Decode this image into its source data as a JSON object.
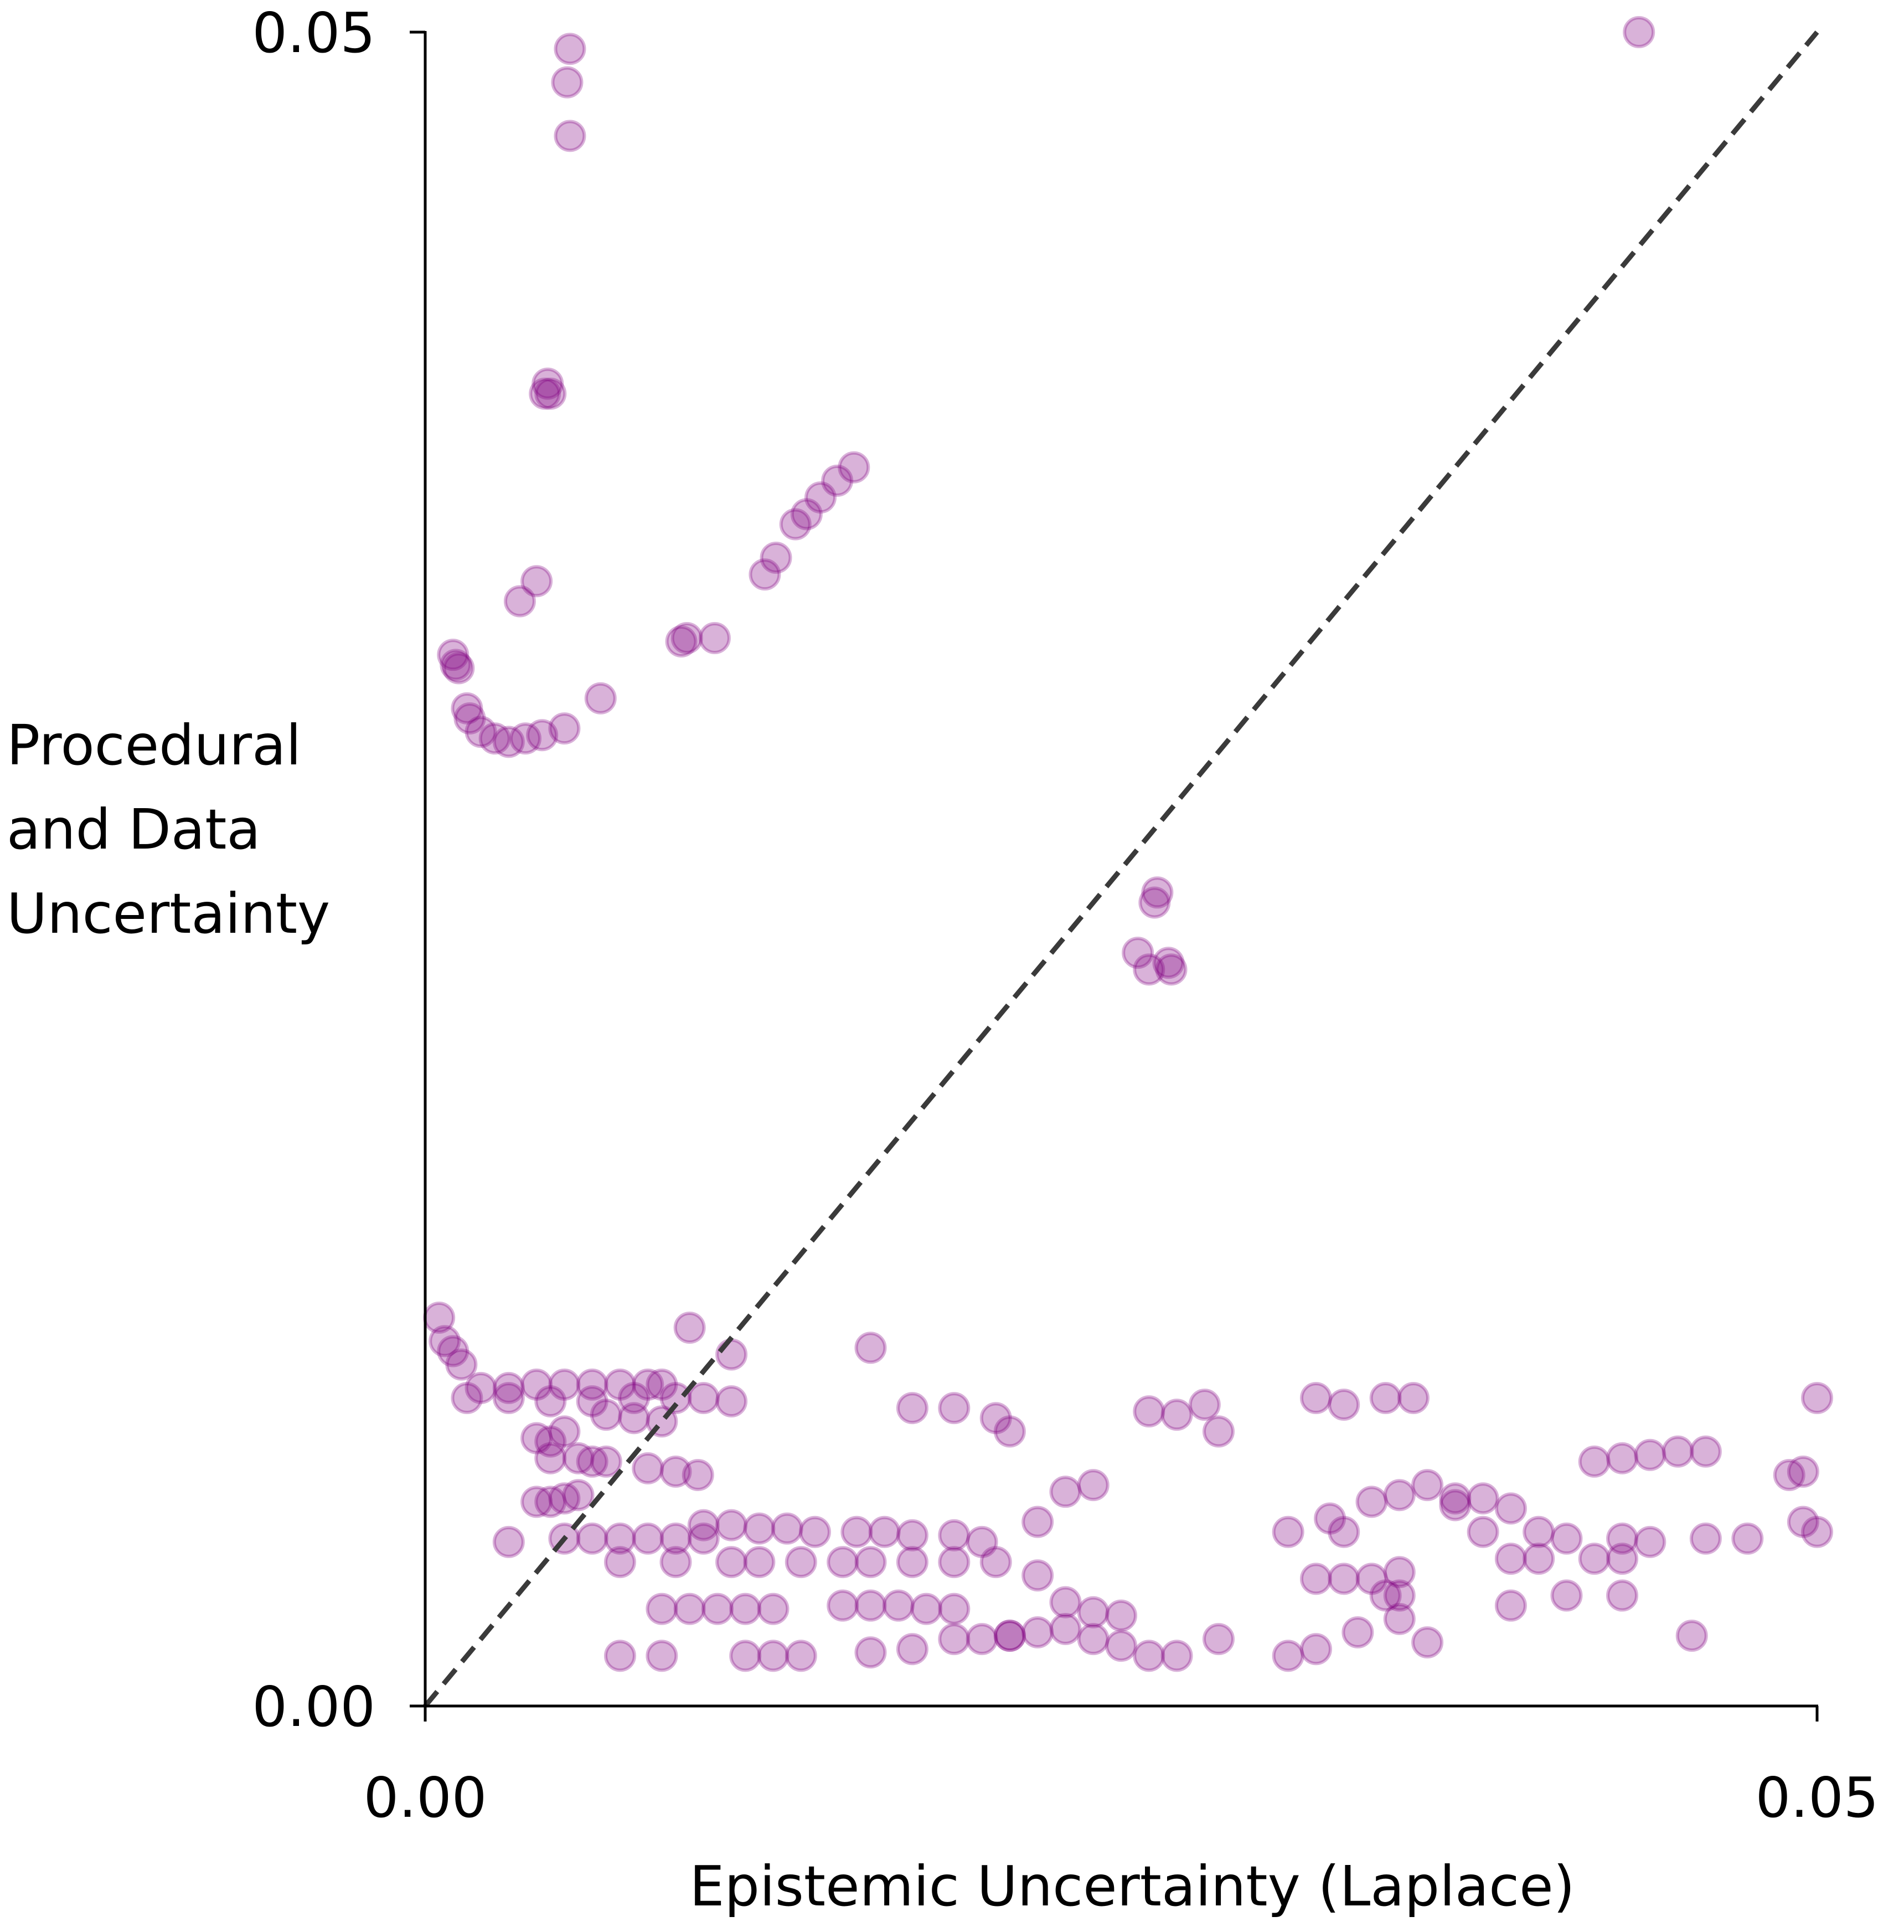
{
  "chart_data": {
    "type": "scatter",
    "title": "",
    "xlabel": "Epistemic Uncertainty (Laplace)",
    "ylabel_lines": [
      "Procedural",
      "and Data",
      "Uncertainty"
    ],
    "xlim": [
      0.0,
      0.05
    ],
    "ylim": [
      0.0,
      0.05
    ],
    "x_ticks": [
      0.0,
      0.05
    ],
    "x_tick_labels": [
      "0.00",
      "0.05"
    ],
    "y_ticks": [
      0.0,
      0.05
    ],
    "y_tick_labels": [
      "0.00",
      "0.05"
    ],
    "reference_line": {
      "style": "dashed",
      "from": [
        0.0,
        0.0
      ],
      "to": [
        0.05,
        0.05
      ],
      "color": "#3a3a3a"
    },
    "marker_color": "#800080",
    "marker_opacity": 0.3,
    "grid": false,
    "series": [
      {
        "name": "samples",
        "points": [
          [
            0.0052,
            0.0495
          ],
          [
            0.0051,
            0.0485
          ],
          [
            0.0052,
            0.0469
          ],
          [
            0.0045,
            0.0392
          ],
          [
            0.0043,
            0.0392
          ],
          [
            0.0044,
            0.0395
          ],
          [
            0.0154,
            0.037
          ],
          [
            0.0148,
            0.0366
          ],
          [
            0.0142,
            0.0361
          ],
          [
            0.0137,
            0.0356
          ],
          [
            0.0133,
            0.0353
          ],
          [
            0.0126,
            0.0343
          ],
          [
            0.0122,
            0.0338
          ],
          [
            0.0094,
            0.0319
          ],
          [
            0.0104,
            0.0319
          ],
          [
            0.0092,
            0.0318
          ],
          [
            0.004,
            0.0336
          ],
          [
            0.0034,
            0.033
          ],
          [
            0.001,
            0.0314
          ],
          [
            0.0011,
            0.0311
          ],
          [
            0.0012,
            0.031
          ],
          [
            0.0015,
            0.0298
          ],
          [
            0.0016,
            0.0295
          ],
          [
            0.002,
            0.0291
          ],
          [
            0.0025,
            0.0289
          ],
          [
            0.003,
            0.0288
          ],
          [
            0.0036,
            0.0289
          ],
          [
            0.0042,
            0.029
          ],
          [
            0.005,
            0.0292
          ],
          [
            0.0063,
            0.0301
          ],
          [
            0.0436,
            0.05
          ],
          [
            0.0263,
            0.0243
          ],
          [
            0.0262,
            0.024
          ],
          [
            0.0256,
            0.0225
          ],
          [
            0.0267,
            0.0222
          ],
          [
            0.0268,
            0.022
          ],
          [
            0.026,
            0.022
          ],
          [
            0.0005,
            0.0116
          ],
          [
            0.0007,
            0.0109
          ],
          [
            0.001,
            0.0106
          ],
          [
            0.0013,
            0.0102
          ],
          [
            0.002,
            0.0095
          ],
          [
            0.003,
            0.0095
          ],
          [
            0.004,
            0.0096
          ],
          [
            0.005,
            0.0096
          ],
          [
            0.006,
            0.0096
          ],
          [
            0.007,
            0.0096
          ],
          [
            0.008,
            0.0096
          ],
          [
            0.0085,
            0.0096
          ],
          [
            0.0015,
            0.0092
          ],
          [
            0.003,
            0.0092
          ],
          [
            0.0045,
            0.0091
          ],
          [
            0.006,
            0.0091
          ],
          [
            0.0075,
            0.0092
          ],
          [
            0.009,
            0.0092
          ],
          [
            0.01,
            0.0092
          ],
          [
            0.011,
            0.0091
          ],
          [
            0.0065,
            0.0087
          ],
          [
            0.0075,
            0.0086
          ],
          [
            0.0085,
            0.0085
          ],
          [
            0.004,
            0.008
          ],
          [
            0.0045,
            0.0079
          ],
          [
            0.005,
            0.0082
          ],
          [
            0.0045,
            0.0074
          ],
          [
            0.0055,
            0.0074
          ],
          [
            0.006,
            0.0073
          ],
          [
            0.0065,
            0.0073
          ],
          [
            0.008,
            0.0071
          ],
          [
            0.009,
            0.007
          ],
          [
            0.0098,
            0.0069
          ],
          [
            0.004,
            0.0061
          ],
          [
            0.0045,
            0.0061
          ],
          [
            0.005,
            0.0062
          ],
          [
            0.0055,
            0.0063
          ],
          [
            0.003,
            0.0049
          ],
          [
            0.005,
            0.005
          ],
          [
            0.006,
            0.005
          ],
          [
            0.007,
            0.005
          ],
          [
            0.008,
            0.005
          ],
          [
            0.009,
            0.005
          ],
          [
            0.01,
            0.005
          ],
          [
            0.01,
            0.0054
          ],
          [
            0.011,
            0.0054
          ],
          [
            0.012,
            0.0053
          ],
          [
            0.013,
            0.0053
          ],
          [
            0.014,
            0.0052
          ],
          [
            0.0155,
            0.0052
          ],
          [
            0.0165,
            0.0052
          ],
          [
            0.0175,
            0.0051
          ],
          [
            0.019,
            0.0051
          ],
          [
            0.02,
            0.0049
          ],
          [
            0.007,
            0.0043
          ],
          [
            0.009,
            0.0043
          ],
          [
            0.011,
            0.0043
          ],
          [
            0.012,
            0.0043
          ],
          [
            0.0135,
            0.0043
          ],
          [
            0.015,
            0.0043
          ],
          [
            0.016,
            0.0043
          ],
          [
            0.0175,
            0.0043
          ],
          [
            0.0085,
            0.0029
          ],
          [
            0.0095,
            0.0029
          ],
          [
            0.0105,
            0.0029
          ],
          [
            0.0115,
            0.0029
          ],
          [
            0.0125,
            0.0029
          ],
          [
            0.015,
            0.003
          ],
          [
            0.016,
            0.003
          ],
          [
            0.017,
            0.003
          ],
          [
            0.018,
            0.0029
          ],
          [
            0.019,
            0.0029
          ],
          [
            0.0115,
            0.0015
          ],
          [
            0.0125,
            0.0015
          ],
          [
            0.0135,
            0.0015
          ],
          [
            0.007,
            0.0015
          ],
          [
            0.0085,
            0.0015
          ],
          [
            0.016,
            0.0016
          ],
          [
            0.0175,
            0.0017
          ],
          [
            0.019,
            0.002
          ],
          [
            0.02,
            0.002
          ],
          [
            0.021,
            0.0021
          ],
          [
            0.0095,
            0.0113
          ],
          [
            0.011,
            0.0105
          ],
          [
            0.016,
            0.0107
          ],
          [
            0.0175,
            0.0089
          ],
          [
            0.019,
            0.0089
          ],
          [
            0.0205,
            0.0086
          ],
          [
            0.021,
            0.0082
          ],
          [
            0.019,
            0.0043
          ],
          [
            0.0205,
            0.0043
          ],
          [
            0.022,
            0.0039
          ],
          [
            0.023,
            0.0031
          ],
          [
            0.024,
            0.0028
          ],
          [
            0.025,
            0.0027
          ],
          [
            0.021,
            0.0021
          ],
          [
            0.022,
            0.0022
          ],
          [
            0.023,
            0.0023
          ],
          [
            0.024,
            0.002
          ],
          [
            0.025,
            0.0018
          ],
          [
            0.026,
            0.0015
          ],
          [
            0.027,
            0.0015
          ],
          [
            0.0285,
            0.002
          ],
          [
            0.023,
            0.0064
          ],
          [
            0.024,
            0.0066
          ],
          [
            0.022,
            0.0055
          ],
          [
            0.026,
            0.0088
          ],
          [
            0.027,
            0.0087
          ],
          [
            0.0285,
            0.0082
          ],
          [
            0.028,
            0.009
          ],
          [
            0.032,
            0.0092
          ],
          [
            0.033,
            0.009
          ],
          [
            0.0345,
            0.0092
          ],
          [
            0.0355,
            0.0092
          ],
          [
            0.031,
            0.0052
          ],
          [
            0.033,
            0.0052
          ],
          [
            0.0325,
            0.0056
          ],
          [
            0.034,
            0.0061
          ],
          [
            0.035,
            0.0063
          ],
          [
            0.036,
            0.0066
          ],
          [
            0.034,
            0.0038
          ],
          [
            0.035,
            0.004
          ],
          [
            0.037,
            0.0062
          ],
          [
            0.038,
            0.0062
          ],
          [
            0.039,
            0.0044
          ],
          [
            0.04,
            0.0044
          ],
          [
            0.032,
            0.0038
          ],
          [
            0.033,
            0.0038
          ],
          [
            0.0345,
            0.0033
          ],
          [
            0.035,
            0.0033
          ],
          [
            0.031,
            0.0015
          ],
          [
            0.036,
            0.0019
          ],
          [
            0.032,
            0.0017
          ],
          [
            0.0335,
            0.0022
          ],
          [
            0.035,
            0.0026
          ],
          [
            0.042,
            0.0073
          ],
          [
            0.043,
            0.0074
          ],
          [
            0.044,
            0.0075
          ],
          [
            0.045,
            0.0076
          ],
          [
            0.046,
            0.0076
          ],
          [
            0.04,
            0.0052
          ],
          [
            0.041,
            0.005
          ],
          [
            0.043,
            0.005
          ],
          [
            0.044,
            0.0049
          ],
          [
            0.046,
            0.005
          ],
          [
            0.037,
            0.006
          ],
          [
            0.039,
            0.0059
          ],
          [
            0.038,
            0.0052
          ],
          [
            0.042,
            0.0044
          ],
          [
            0.043,
            0.0044
          ],
          [
            0.039,
            0.003
          ],
          [
            0.041,
            0.0033
          ],
          [
            0.043,
            0.0033
          ],
          [
            0.0455,
            0.0021
          ],
          [
            0.0475,
            0.005
          ],
          [
            0.0495,
            0.0055
          ],
          [
            0.05,
            0.0052
          ],
          [
            0.0495,
            0.007
          ],
          [
            0.049,
            0.0069
          ],
          [
            0.05,
            0.0092
          ]
        ]
      }
    ]
  }
}
